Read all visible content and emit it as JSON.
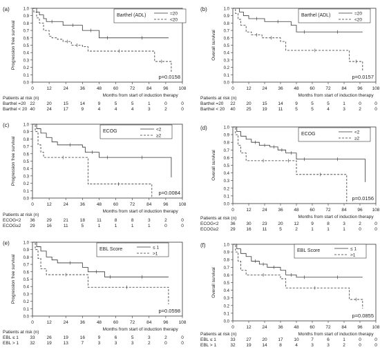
{
  "chart_data": [
    {
      "type": "line",
      "panel_label": "(a)",
      "ylabel": "Progression free survival",
      "xlabel": "Months from start of induction therapy",
      "xticks": [
        0,
        12,
        24,
        36,
        48,
        60,
        72,
        84,
        96,
        108
      ],
      "yticks": [
        0.0,
        0.1,
        0.2,
        0.3,
        0.4,
        0.5,
        0.6,
        0.7,
        0.8,
        0.9,
        1.0
      ],
      "xlim": [
        0,
        108
      ],
      "ylim": [
        0,
        1
      ],
      "legend_title": "Barthel (ADL)",
      "pvalue": "p=0.0158",
      "series": [
        {
          "name": "=20",
          "dash": false,
          "x": [
            0,
            3,
            5,
            8,
            10,
            18,
            22,
            36,
            48,
            60,
            98
          ],
          "y": [
            1.0,
            0.95,
            0.91,
            0.86,
            0.82,
            0.82,
            0.77,
            0.7,
            0.6,
            0.6,
            0.6
          ]
        },
        {
          "name": "<20",
          "dash": true,
          "x": [
            0,
            1,
            3,
            5,
            8,
            12,
            14,
            18,
            22,
            28,
            36,
            40,
            85,
            88,
            98,
            100
          ],
          "y": [
            1.0,
            0.95,
            0.87,
            0.8,
            0.7,
            0.62,
            0.6,
            0.58,
            0.55,
            0.5,
            0.48,
            0.42,
            0.42,
            0.28,
            0.28,
            0.14
          ]
        }
      ],
      "risk_header": "Patients at risk (n)",
      "risk_rows": [
        {
          "label": "Barthel =20",
          "values": [
            "22",
            "20",
            "15",
            "14",
            "9",
            "5",
            "5",
            "1",
            "0",
            "0"
          ]
        },
        {
          "label": "Barthel < 20",
          "values": [
            "40",
            "24",
            "17",
            "9",
            "4",
            "4",
            "4",
            "3",
            "2",
            "0"
          ]
        }
      ]
    },
    {
      "type": "line",
      "panel_label": "(b)",
      "ylabel": "Overall survival",
      "xlabel": "Months from start of induction therapy",
      "xticks": [
        0,
        12,
        24,
        36,
        48,
        60,
        72,
        84,
        96,
        108
      ],
      "yticks": [
        0.0,
        0.1,
        0.2,
        0.3,
        0.4,
        0.5,
        0.6,
        0.7,
        0.8,
        0.9,
        1.0
      ],
      "xlim": [
        0,
        108
      ],
      "ylim": [
        0,
        1
      ],
      "legend_title": "Barthel (ADL)",
      "pvalue": "p=0.0157",
      "series": [
        {
          "name": "=20",
          "dash": false,
          "x": [
            0,
            5,
            8,
            12,
            24,
            44,
            48,
            60,
            98
          ],
          "y": [
            1.0,
            0.95,
            0.9,
            0.86,
            0.82,
            0.77,
            0.68,
            0.68,
            0.68
          ]
        },
        {
          "name": "<20",
          "dash": true,
          "x": [
            0,
            2,
            4,
            6,
            10,
            14,
            22,
            36,
            40,
            84,
            88,
            98
          ],
          "y": [
            1.0,
            0.93,
            0.85,
            0.77,
            0.68,
            0.64,
            0.6,
            0.55,
            0.43,
            0.43,
            0.28,
            0.14
          ]
        }
      ],
      "risk_header": "Patients at risk (n)",
      "risk_rows": [
        {
          "label": "Barthel =20",
          "values": [
            "22",
            "20",
            "15",
            "14",
            "9",
            "5",
            "5",
            "1",
            "0",
            "0"
          ]
        },
        {
          "label": "Barthel < 20",
          "values": [
            "40",
            "25",
            "19",
            "11",
            "5",
            "5",
            "4",
            "3",
            "2",
            "0"
          ]
        }
      ]
    },
    {
      "type": "line",
      "panel_label": "(c)",
      "ylabel": "Progression free survival",
      "xlabel": "Months from start of induction therapy",
      "xticks": [
        0,
        12,
        24,
        36,
        48,
        60,
        72,
        84,
        96,
        108
      ],
      "yticks": [
        0.0,
        0.1,
        0.2,
        0.3,
        0.4,
        0.5,
        0.6,
        0.7,
        0.8,
        0.9,
        1.0
      ],
      "xlim": [
        0,
        108
      ],
      "ylim": [
        0,
        1
      ],
      "legend_title": "ECOG",
      "pvalue": "p=0.0084",
      "series": [
        {
          "name": "<2",
          "dash": false,
          "x": [
            0,
            3,
            6,
            10,
            14,
            18,
            36,
            38,
            48,
            60,
            98,
            100
          ],
          "y": [
            1.0,
            0.94,
            0.88,
            0.82,
            0.76,
            0.72,
            0.69,
            0.62,
            0.55,
            0.55,
            0.55,
            0.28
          ]
        },
        {
          "name": "≥2",
          "dash": true,
          "x": [
            0,
            2,
            4,
            6,
            8,
            36,
            40,
            84,
            86
          ],
          "y": [
            1.0,
            0.9,
            0.72,
            0.62,
            0.55,
            0.55,
            0.19,
            0.19,
            0.0
          ]
        }
      ],
      "risk_header": "Patients at risk (n)",
      "risk_rows": [
        {
          "label": "ECOG<2",
          "values": [
            "36",
            "29",
            "21",
            "18",
            "11",
            "8",
            "8",
            "3",
            "2",
            "0"
          ]
        },
        {
          "label": "ECOG≥2",
          "values": [
            "29",
            "16",
            "11",
            "5",
            "1",
            "1",
            "1",
            "1",
            "0",
            "0"
          ]
        }
      ]
    },
    {
      "type": "line",
      "panel_label": "(d)",
      "ylabel": "Overall survival",
      "xlabel": "Months from start of induction therapy",
      "xticks": [
        0,
        12,
        24,
        36,
        48,
        60,
        72,
        84,
        96,
        108
      ],
      "yticks": [
        0.0,
        0.1,
        0.2,
        0.3,
        0.4,
        0.5,
        0.6,
        0.7,
        0.8,
        0.9,
        1.0
      ],
      "xlim": [
        0,
        108
      ],
      "ylim": [
        0,
        1
      ],
      "legend_title": "ECOG",
      "pvalue": "p=0.0156",
      "series": [
        {
          "name": "<2",
          "dash": false,
          "x": [
            0,
            3,
            6,
            10,
            14,
            20,
            28,
            34,
            40,
            48,
            60,
            98,
            100
          ],
          "y": [
            1.0,
            0.94,
            0.88,
            0.84,
            0.8,
            0.76,
            0.74,
            0.7,
            0.66,
            0.58,
            0.58,
            0.58,
            0.28
          ]
        },
        {
          "name": "≥2",
          "dash": true,
          "x": [
            0,
            2,
            4,
            6,
            10,
            36,
            48,
            84,
            86
          ],
          "y": [
            1.0,
            0.9,
            0.76,
            0.66,
            0.56,
            0.56,
            0.38,
            0.38,
            0.0
          ]
        }
      ],
      "risk_header": "Patients at risk (n)",
      "risk_rows": [
        {
          "label": "ECOG<2",
          "values": [
            "36",
            "30",
            "23",
            "20",
            "12",
            "9",
            "8",
            "3",
            "2",
            "0"
          ]
        },
        {
          "label": "ECOG≥2",
          "values": [
            "29",
            "16",
            "11",
            "5",
            "2",
            "1",
            "1",
            "1",
            "0",
            "0"
          ]
        }
      ]
    },
    {
      "type": "line",
      "panel_label": "(e)",
      "ylabel": "Progression free survival",
      "xlabel": "Months from start of induction therapy",
      "xticks": [
        0,
        12,
        24,
        36,
        48,
        60,
        72,
        84,
        96,
        108
      ],
      "yticks": [
        0.0,
        0.1,
        0.2,
        0.3,
        0.4,
        0.5,
        0.6,
        0.7,
        0.8,
        0.9,
        1.0
      ],
      "xlim": [
        0,
        108
      ],
      "ylim": [
        0,
        1
      ],
      "legend_title": "EBL Score",
      "pvalue": "p=0.0598",
      "series": [
        {
          "name": "≤ 1",
          "dash": false,
          "x": [
            0,
            3,
            6,
            10,
            14,
            18,
            36,
            40,
            52,
            60,
            98
          ],
          "y": [
            1.0,
            0.94,
            0.88,
            0.8,
            0.76,
            0.72,
            0.66,
            0.6,
            0.53,
            0.53,
            0.53
          ]
        },
        {
          "name": ">1",
          "dash": true,
          "x": [
            0,
            2,
            4,
            6,
            10,
            38,
            40,
            96,
            98
          ],
          "y": [
            1.0,
            0.9,
            0.78,
            0.64,
            0.56,
            0.56,
            0.39,
            0.39,
            0.16
          ]
        }
      ],
      "risk_header": "Patients at risk (n)",
      "risk_rows": [
        {
          "label": "EBL ≤ 1",
          "values": [
            "33",
            "26",
            "19",
            "16",
            "9",
            "6",
            "5",
            "3",
            "2",
            "0"
          ]
        },
        {
          "label": "EBL > 1",
          "values": [
            "32",
            "19",
            "13",
            "7",
            "3",
            "3",
            "3",
            "2",
            "0",
            "0"
          ]
        }
      ]
    },
    {
      "type": "line",
      "panel_label": "(f)",
      "ylabel": "Overall survival",
      "xlabel": "Months from start of induction therapy",
      "xticks": [
        0,
        12,
        24,
        36,
        48,
        60,
        72,
        84,
        96,
        108
      ],
      "yticks": [
        0.0,
        0.1,
        0.2,
        0.3,
        0.4,
        0.5,
        0.6,
        0.7,
        0.8,
        0.9,
        1.0
      ],
      "xlim": [
        0,
        108
      ],
      "ylim": [
        0,
        1
      ],
      "legend_title": "EBL Score",
      "pvalue": "p=0.0855",
      "series": [
        {
          "name": "≤ 1",
          "dash": false,
          "x": [
            0,
            3,
            6,
            10,
            14,
            20,
            26,
            36,
            40,
            48,
            60,
            98
          ],
          "y": [
            1.0,
            0.94,
            0.88,
            0.84,
            0.78,
            0.74,
            0.7,
            0.66,
            0.6,
            0.57,
            0.57,
            0.57
          ]
        },
        {
          "name": ">1",
          "dash": true,
          "x": [
            0,
            2,
            4,
            6,
            10,
            36,
            40,
            84,
            88,
            98
          ],
          "y": [
            1.0,
            0.9,
            0.78,
            0.66,
            0.6,
            0.55,
            0.43,
            0.43,
            0.28,
            0.16
          ]
        }
      ],
      "risk_header": "Patients at risk (n)",
      "risk_rows": [
        {
          "label": "EBL ≤ 1",
          "values": [
            "33",
            "27",
            "20",
            "17",
            "10",
            "7",
            "6",
            "1",
            "0",
            "0"
          ]
        },
        {
          "label": "EBL > 1",
          "values": [
            "32",
            "19",
            "14",
            "8",
            "4",
            "3",
            "3",
            "2",
            "0",
            "0"
          ]
        }
      ]
    }
  ]
}
